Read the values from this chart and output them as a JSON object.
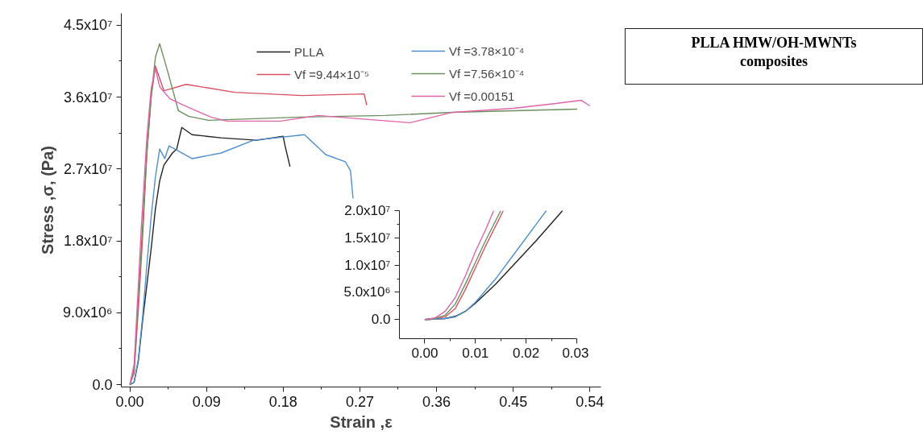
{
  "chart_data": [
    {
      "type": "line",
      "xlabel": "Strain ,ε",
      "ylabel": "Stress ,σ, (Pa)",
      "xlim": [
        -0.01,
        0.553
      ],
      "ylim": [
        -300000.0,
        46500000.0
      ],
      "xticks": [
        {
          "value": 0,
          "label": "0.00"
        },
        0.09,
        0.18,
        0.27,
        0.36,
        0.45,
        0.54
      ],
      "yticks": [
        {
          "value": 0,
          "label": "0.0"
        },
        {
          "value": 9000000.0,
          "label": "9.0x10⁶"
        },
        {
          "value": 18000000.0,
          "label": "1.8x10⁷"
        },
        {
          "value": 27000000.0,
          "label": "2.7x10⁷"
        },
        {
          "value": 36000000.0,
          "label": "3.6x10⁷"
        },
        {
          "value": 45000000.0,
          "label": "4.5x10⁷"
        }
      ],
      "legend": "top right",
      "grid": false,
      "series": [
        {
          "name": "PLLA",
          "color": "#222222",
          "x": [
            0,
            0.005,
            0.01,
            0.015,
            0.02,
            0.025,
            0.03,
            0.035,
            0.04,
            0.05,
            0.055,
            0.061,
            0.073,
            0.107,
            0.149,
            0.18,
            0.182,
            0.188
          ],
          "values": [
            0,
            300000.0,
            3000000.0,
            8000000.0,
            12500000.0,
            17000000.0,
            22000000.0,
            25500000.0,
            27500000.0,
            29000000.0,
            29500000.0,
            32200000.0,
            31300000.0,
            30900000.0,
            30600000.0,
            31100000.0,
            30000000.0,
            27300000.0
          ]
        },
        {
          "name": "Vf =9.44×10⁻⁵",
          "color": "#d9505e",
          "x": [
            0,
            0.005,
            0.01,
            0.015,
            0.02,
            0.025,
            0.03,
            0.04,
            0.047,
            0.066,
            0.123,
            0.202,
            0.275,
            0.278
          ],
          "values": [
            0,
            1500000.0,
            9500000.0,
            18500000.0,
            29000000.0,
            36000000.0,
            39900000.0,
            36800000.0,
            37000000.0,
            37600000.0,
            36600000.0,
            36200000.0,
            36400000.0,
            35000000.0
          ]
        },
        {
          "name": "Vf =3.78×10⁻⁴",
          "color": "#4f8fd0",
          "x": [
            0,
            0.005,
            0.01,
            0.015,
            0.02,
            0.025,
            0.03,
            0.035,
            0.041,
            0.046,
            0.073,
            0.107,
            0.145,
            0.205,
            0.23,
            0.253,
            0.259,
            0.262
          ],
          "values": [
            0,
            300000.0,
            3200000.0,
            8500000.0,
            15000000.0,
            21000000.0,
            26000000.0,
            29500000.0,
            28300000.0,
            29900000.0,
            28300000.0,
            29000000.0,
            30600000.0,
            31300000.0,
            28800000.0,
            27900000.0,
            26800000.0,
            23300000.0
          ]
        },
        {
          "name": "Vf =7.56×10⁻⁴",
          "color": "#6b8f5e",
          "x": [
            0,
            0.005,
            0.01,
            0.015,
            0.02,
            0.025,
            0.03,
            0.035,
            0.045,
            0.057,
            0.069,
            0.092,
            0.2,
            0.3,
            0.379,
            0.45,
            0.525
          ],
          "values": [
            0,
            2000000.0,
            10500000.0,
            20000000.0,
            29000000.0,
            36000000.0,
            41000000.0,
            42700000.0,
            39000000.0,
            34300000.0,
            33600000.0,
            33100000.0,
            33500000.0,
            33700000.0,
            34100000.0,
            34300000.0,
            34500000.0
          ]
        },
        {
          "name": "Vf =0.00151",
          "color": "#e064a8",
          "x": [
            0,
            0.005,
            0.01,
            0.0136,
            0.02,
            0.025,
            0.03,
            0.035,
            0.047,
            0.063,
            0.095,
            0.114,
            0.177,
            0.221,
            0.28,
            0.329,
            0.379,
            0.45,
            0.5,
            0.53,
            0.54
          ],
          "values": [
            0,
            2500000.0,
            12500000.0,
            20000000.0,
            31000000.0,
            37000000.0,
            39600000.0,
            37300000.0,
            35800000.0,
            35000000.0,
            33500000.0,
            33000000.0,
            33000000.0,
            33700000.0,
            33200000.0,
            32800000.0,
            34100000.0,
            34600000.0,
            35200000.0,
            35600000.0,
            34900000.0
          ]
        }
      ]
    },
    {
      "type": "line",
      "xlim": [
        -0.005,
        0.03
      ],
      "ylim": [
        -3500000.0,
        20000000.0
      ],
      "grid": false,
      "xticks": [
        {
          "value": 0,
          "label": "0.00"
        },
        0.01,
        0.02,
        0.03
      ],
      "yticks": [
        {
          "value": 0,
          "label": "0.0"
        },
        {
          "value": 5000000.0,
          "label": "5.0x10⁶"
        },
        {
          "value": 10000000.0,
          "label": "1.0x10⁷"
        },
        {
          "value": 15000000.0,
          "label": "1.5x10⁷"
        },
        {
          "value": 20000000.0,
          "label": "2.0x10⁷"
        }
      ],
      "series": [
        {
          "color": "#222222",
          "x": [
            0,
            0.004,
            0.006,
            0.008,
            0.01,
            0.014,
            0.018,
            0.022,
            0.0272
          ],
          "values": [
            0,
            200000.0,
            600000.0,
            1500000.0,
            3000000.0,
            6500000.0,
            10500000.0,
            14500000.0,
            20000000.0
          ]
        },
        {
          "color": "#d9505e",
          "x": [
            0,
            0.002,
            0.004,
            0.006,
            0.008,
            0.01,
            0.012,
            0.0155
          ],
          "values": [
            0,
            100000.0,
            500000.0,
            2000000.0,
            5500000.0,
            9500000.0,
            13500000.0,
            20000000.0
          ]
        },
        {
          "color": "#4f8fd0",
          "x": [
            0,
            0.004,
            0.006,
            0.008,
            0.01,
            0.014,
            0.018,
            0.022,
            0.024
          ],
          "values": [
            0,
            200000.0,
            500000.0,
            1500000.0,
            3200000.0,
            7500000.0,
            12500000.0,
            17500000.0,
            20000000.0
          ]
        },
        {
          "color": "#6b8f5e",
          "x": [
            0,
            0.002,
            0.004,
            0.006,
            0.008,
            0.01,
            0.012,
            0.015
          ],
          "values": [
            0,
            200000.0,
            800000.0,
            2800000.0,
            6500000.0,
            10500000.0,
            14500000.0,
            20000000.0
          ]
        },
        {
          "color": "#e064a8",
          "x": [
            0,
            0.002,
            0.004,
            0.006,
            0.008,
            0.01,
            0.012,
            0.0136
          ],
          "values": [
            0,
            300000.0,
            1500000.0,
            4000000.0,
            8000000.0,
            12500000.0,
            16500000.0,
            20000000.0
          ]
        }
      ]
    },
    {
      "type": "other",
      "annotations": [
        "PLLA HMW/OH-MWNTs composites"
      ]
    }
  ]
}
